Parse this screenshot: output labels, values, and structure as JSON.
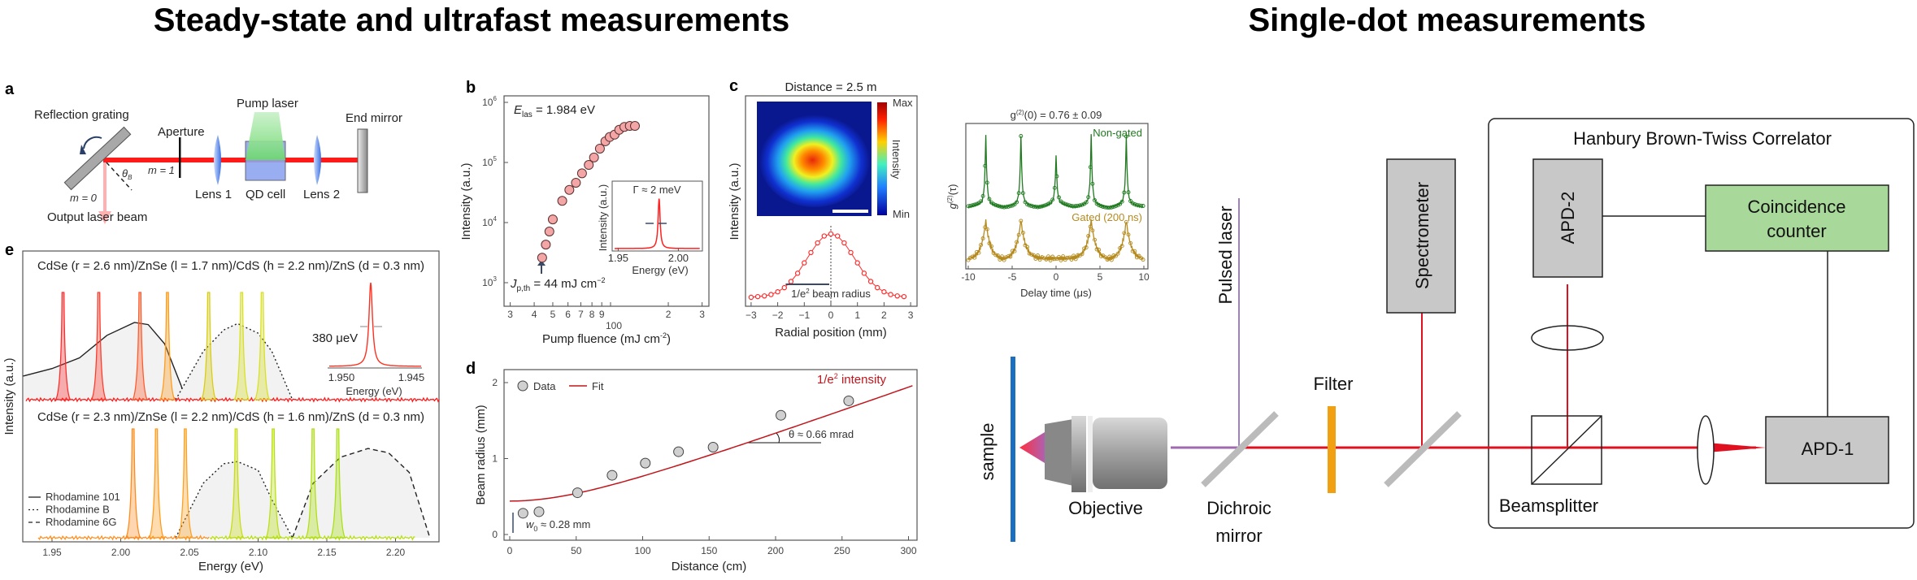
{
  "titles": {
    "left": "Steady-state and ultrafast measurements",
    "right": "Single-dot measurements"
  },
  "panel_a": {
    "letter": "a",
    "reflection_grating": "Reflection grating",
    "aperture": "Aperture",
    "pump_laser": "Pump laser",
    "end_mirror": "End mirror",
    "lens1": "Lens 1",
    "qd_cell": "QD cell",
    "lens2": "Lens 2",
    "m1": "m = 1",
    "m0": "m = 0",
    "theta": "θ",
    "theta_sub": "B",
    "output": "Output laser beam",
    "colors": {
      "beam": "#ff1a1a",
      "pump": "#7ddc7d",
      "lens": "#4a7fe8",
      "cell": "#8fa6f0"
    }
  },
  "chart_data": [
    {
      "id": "b",
      "type": "scatter",
      "letter": "b",
      "xlabel": "Pump fluence (mJ cm",
      "xlabel_sup": "-2",
      "xlabel_end": ")",
      "ylabel": "Intensity (a.u.)",
      "xscale": "log",
      "yscale": "log",
      "xlim": [
        28,
        320
      ],
      "ylim": [
        600,
        1000000
      ],
      "xticks": [
        {
          "v": 30,
          "t": "3"
        },
        {
          "v": 40,
          "t": "4"
        },
        {
          "v": 50,
          "t": "5"
        },
        {
          "v": 60,
          "t": "6"
        },
        {
          "v": 70,
          "t": "7"
        },
        {
          "v": 80,
          "t": "8"
        },
        {
          "v": 90,
          "t": "9"
        },
        {
          "v": 100,
          "t": ""
        },
        {
          "v": 200,
          "t": "2"
        },
        {
          "v": 300,
          "t": "3"
        }
      ],
      "xtick_decade_label": "100",
      "yticks": [
        {
          "v": 1000,
          "t": "10",
          "s": "3"
        },
        {
          "v": 10000,
          "t": "10",
          "s": "4"
        },
        {
          "v": 100000,
          "t": "10",
          "s": "5"
        },
        {
          "v": 1000000,
          "t": "10",
          "s": "6"
        }
      ],
      "points": [
        [
          44,
          2600
        ],
        [
          46,
          4300
        ],
        [
          48,
          7100
        ],
        [
          50,
          11300
        ],
        [
          56,
          23000
        ],
        [
          61,
          35000
        ],
        [
          66,
          46000
        ],
        [
          71,
          66000
        ],
        [
          77,
          91000
        ],
        [
          82,
          121000
        ],
        [
          88,
          170000
        ],
        [
          94,
          225000
        ],
        [
          99,
          265000
        ],
        [
          105,
          290000
        ],
        [
          111,
          350000
        ],
        [
          118,
          390000
        ],
        [
          126,
          405000
        ],
        [
          134,
          405000
        ]
      ],
      "marker_color": "#f4a6a6",
      "elas": {
        "E": "E",
        "sub": "las",
        "rest": " = 1.984 eV"
      },
      "threshold": {
        "J": "J",
        "sub": "p,th",
        "rest": " = 44 mJ cm",
        "sup": "−2"
      },
      "inset": {
        "type": "line",
        "ylabel": "Intensity (a.u.)",
        "xlabel": "Energy (eV)",
        "xlim": [
          1.945,
          2.02
        ],
        "xticks": [
          {
            "v": 1.95,
            "t": "1.95"
          },
          {
            "v": 2.0,
            "t": "2.00"
          }
        ],
        "peak_energy": 1.984,
        "fwhm_label": "Γ ≈ 2 meV",
        "color": "#ff2020"
      }
    },
    {
      "id": "c",
      "type": "line",
      "letter": "c",
      "title": "Distance = 2.5 m",
      "xlabel": "Radial position (mm)",
      "ylabel": "Intensity (a.u.)",
      "xlim": [
        -3.2,
        3.2
      ],
      "xticks": [
        {
          "v": -3,
          "t": "−3"
        },
        {
          "v": -2,
          "t": "−2"
        },
        {
          "v": -1,
          "t": "−1"
        },
        {
          "v": 0,
          "t": "0"
        },
        {
          "v": 1,
          "t": "1"
        },
        {
          "v": 2,
          "t": "2"
        },
        {
          "v": 3,
          "t": "3"
        }
      ],
      "x": [
        -3,
        -2.75,
        -2.5,
        -2.25,
        -2,
        -1.75,
        -1.5,
        -1.25,
        -1,
        -0.75,
        -0.5,
        -0.25,
        0,
        0.25,
        0.5,
        0.75,
        1,
        1.25,
        1.5,
        1.75,
        2,
        2.25,
        2.5,
        2.75
      ],
      "y": [
        0.08,
        0.09,
        0.1,
        0.12,
        0.16,
        0.22,
        0.31,
        0.43,
        0.58,
        0.73,
        0.87,
        0.97,
        1.0,
        0.97,
        0.87,
        0.73,
        0.58,
        0.43,
        0.31,
        0.22,
        0.16,
        0.12,
        0.1,
        0.09
      ],
      "beam_radius_label": "1/e",
      "beam_radius_sup": "2",
      "beam_radius_rest": " beam radius",
      "beam_radius_mm": 1.7,
      "colorbar": {
        "max": "Max",
        "min": "Min",
        "label": "Intensity"
      },
      "color": "#ff2a2a"
    },
    {
      "id": "d",
      "type": "scatter",
      "letter": "d",
      "xlabel": "Distance (cm)",
      "ylabel": "Beam radius (mm)",
      "xlim": [
        -4,
        305
      ],
      "ylim": [
        -0.08,
        2.2
      ],
      "xticks": [
        0,
        50,
        100,
        150,
        200,
        250,
        300
      ],
      "yticks": [
        0,
        1,
        2
      ],
      "points": [
        [
          10,
          0.28
        ],
        [
          22,
          0.3
        ],
        [
          51,
          0.55
        ],
        [
          77,
          0.78
        ],
        [
          102,
          0.94
        ],
        [
          127,
          1.09
        ],
        [
          153,
          1.15
        ],
        [
          204,
          1.57
        ],
        [
          255,
          1.76
        ]
      ],
      "fit": {
        "w_at_0": 0.44,
        "divergence_mm_per_cm": 0.0063
      },
      "legend": {
        "data": "Data",
        "fit": "Fit",
        "placement": "top-left"
      },
      "fit_label": "1/e",
      "fit_label_sup": "2",
      "fit_label_rest": " intensity",
      "theta_label": "θ ≈ 0.66 mrad",
      "w0_label": "w",
      "w0_sub": "0",
      "w0_rest": " ≈ 0.28 mm",
      "colors": {
        "fit": "#c0161c",
        "marker": "#d0d0d0"
      }
    },
    {
      "id": "e",
      "type": "line",
      "letter": "e",
      "xlabel": "Energy (eV)",
      "ylabel": "Intensity (a.u.)",
      "xlim": [
        1.929,
        2.232
      ],
      "xticks": [
        {
          "v": 1.95,
          "t": "1.95"
        },
        {
          "v": 2.0,
          "t": "2.00"
        },
        {
          "v": 2.05,
          "t": "2.05"
        },
        {
          "v": 2.1,
          "t": "2.10"
        },
        {
          "v": 2.15,
          "t": "2.15"
        },
        {
          "v": 2.2,
          "t": "2.20"
        }
      ],
      "top": {
        "title": "CdSe (r = 2.6 nm)/ZnSe (l = 1.7 nm)/CdS (h = 2.2 nm)/ZnS (d = 0.3 nm)",
        "peaks": [
          {
            "e": 1.958,
            "c": "#ff2a2a"
          },
          {
            "e": 1.984,
            "c": "#ff3a2a"
          },
          {
            "e": 2.014,
            "c": "#ff5a2a"
          },
          {
            "e": 2.034,
            "c": "#ff9a1a"
          },
          {
            "e": 2.064,
            "c": "#d8cc10"
          },
          {
            "e": 2.088,
            "c": "#d8e020"
          },
          {
            "e": 2.103,
            "c": "#d8e020"
          }
        ],
        "baseline_color": "#ff1a1a",
        "dyes": [
          {
            "name": "Rhodamine 101",
            "style": "solid",
            "points": [
              [
                1.929,
                0.22
              ],
              [
                1.95,
                0.29
              ],
              [
                1.97,
                0.39
              ],
              [
                1.99,
                0.6
              ],
              [
                2.01,
                0.72
              ],
              [
                2.02,
                0.7
              ],
              [
                2.032,
                0.52
              ],
              [
                2.044,
                0.13
              ],
              [
                2.047,
                0
              ]
            ]
          },
          {
            "name": "Rhodamine B",
            "style": "dotted",
            "points": [
              [
                2.04,
                0
              ],
              [
                2.06,
                0.45
              ],
              [
                2.075,
                0.65
              ],
              [
                2.085,
                0.71
              ],
              [
                2.1,
                0.62
              ],
              [
                2.11,
                0.45
              ],
              [
                2.125,
                0
              ]
            ]
          }
        ]
      },
      "bottom": {
        "title": "CdSe (r = 2.3 nm)/ZnSe (l = 2.2 nm)/CdS (h = 1.6 nm)/ZnS (d = 0.3 nm)",
        "peaks": [
          {
            "e": 2.009,
            "c": "#ff8a1a"
          },
          {
            "e": 2.026,
            "c": "#ff9a1a"
          },
          {
            "e": 2.047,
            "c": "#ffa020"
          },
          {
            "e": 2.084,
            "c": "#c8dc10"
          },
          {
            "e": 2.111,
            "c": "#b8e010"
          },
          {
            "e": 2.14,
            "c": "#b0e010"
          },
          {
            "e": 2.158,
            "c": "#a8e010"
          }
        ],
        "dyes": [
          {
            "name": "Rhodamine B",
            "style": "dotted",
            "points": [
              [
                2.04,
                0
              ],
              [
                2.06,
                0.5
              ],
              [
                2.075,
                0.68
              ],
              [
                2.085,
                0.7
              ],
              [
                2.1,
                0.62
              ],
              [
                2.11,
                0.35
              ],
              [
                2.125,
                0
              ]
            ]
          },
          {
            "name": "Rhodamine 6G",
            "style": "dashed",
            "points": [
              [
                2.125,
                0
              ],
              [
                2.14,
                0.5
              ],
              [
                2.16,
                0.74
              ],
              [
                2.18,
                0.82
              ],
              [
                2.195,
                0.78
              ],
              [
                2.21,
                0.6
              ],
              [
                2.225,
                0
              ]
            ]
          }
        ]
      },
      "legend": [
        {
          "name": "Rhodamine 101",
          "style": "solid"
        },
        {
          "name": "Rhodamine B",
          "style": "dotted"
        },
        {
          "name": "Rhodamine 6G",
          "style": "dashed"
        }
      ],
      "inset": {
        "linewidth_label": "380 μeV",
        "xlabel": "Energy (eV)",
        "xticks": [
          "1.950",
          "1.945"
        ],
        "color": "#ff3020"
      }
    },
    {
      "id": "g2",
      "type": "scatter",
      "title_g": "g",
      "title_sup": "(2)",
      "title_rest": "(0) = 0.76 ± 0.09",
      "xlabel": "Delay time (μs)",
      "ylabel": "g",
      "ylabel_sup": "(2)",
      "ylabel_rest": "(τ)",
      "xlim": [
        -10.5,
        10.5
      ],
      "xticks": [
        {
          "v": -10,
          "t": "-10"
        },
        {
          "v": -5,
          "t": "-5"
        },
        {
          "v": 0,
          "t": "0"
        },
        {
          "v": 5,
          "t": "5"
        },
        {
          "v": 10,
          "t": "10"
        }
      ],
      "series": [
        {
          "name": "Non-gated",
          "color": "#1f7a1f",
          "peak_times": [
            -8,
            -4,
            0,
            4,
            8
          ],
          "peak_heights": [
            1.0,
            1.0,
            0.68,
            1.0,
            0.98
          ]
        },
        {
          "name": "Gated (200 ns)",
          "color": "#b58a1e",
          "peak_times": [
            -8,
            -4,
            4,
            8
          ],
          "peak_heights": [
            1.0,
            1.0,
            1.0,
            1.0
          ]
        }
      ]
    }
  ],
  "setup": {
    "hbt_title": "Hanbury Brown-Twiss Correlator",
    "apd2": "APD-2",
    "apd1": "APD-1",
    "coincidence": [
      "Coincidence",
      "counter"
    ],
    "spectrometer": "Spectrometer",
    "pulsed_laser": "Pulsed laser",
    "filter": "Filter",
    "dichroic": [
      "Dichroic",
      "mirror"
    ],
    "beamsplitter": "Beamsplitter",
    "objective": "Objective",
    "sample": "sample",
    "colors": {
      "beam": "#e01020",
      "box": "#c8c8c8",
      "counter": "#a8d89a",
      "filter": "#f0a010",
      "sample": "#1a6fc0",
      "pulsed": "#a080c0"
    }
  }
}
